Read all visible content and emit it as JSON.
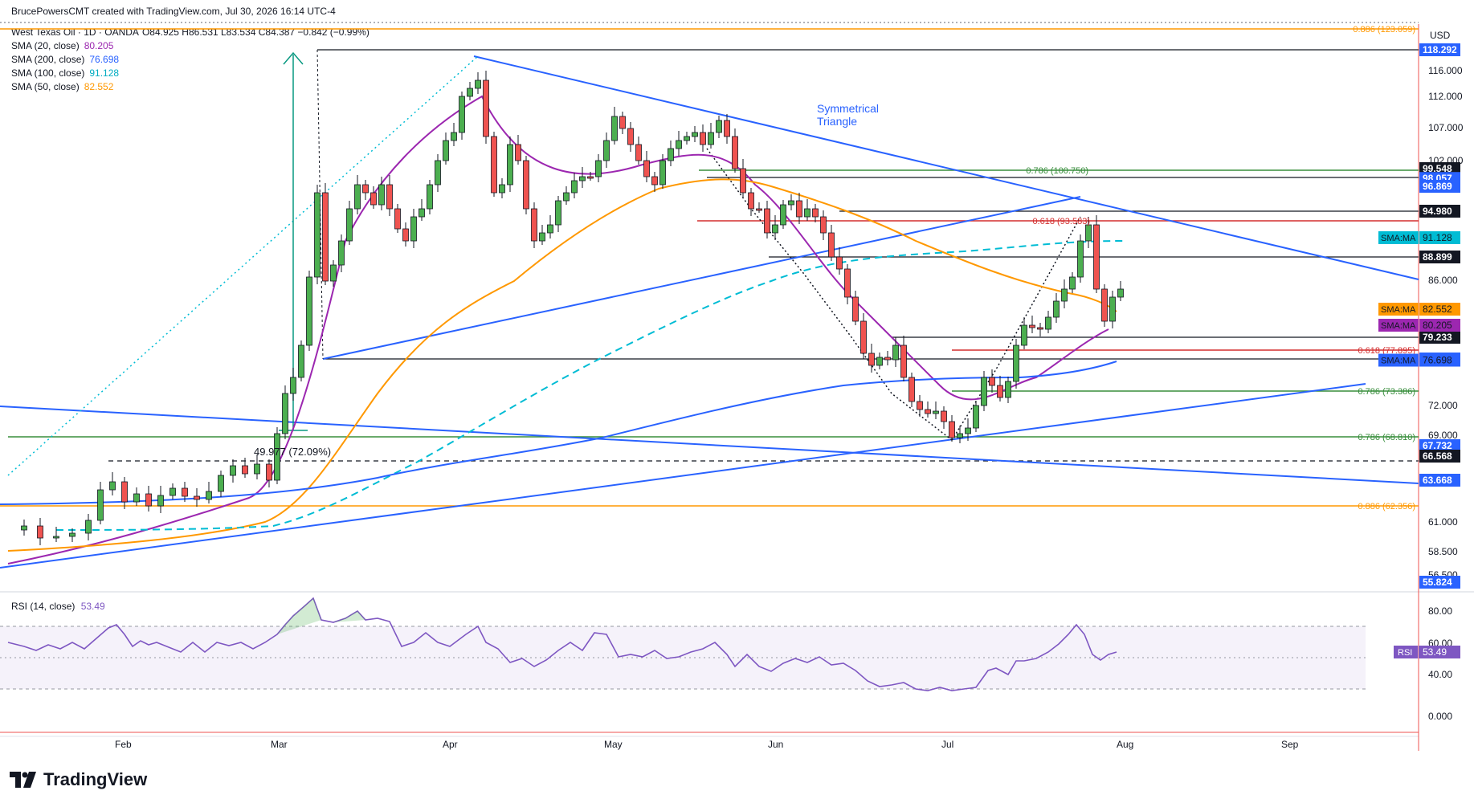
{
  "header": {
    "creator_line": "BrucePowersCMT created with TradingView.com, Jul 30, 2026 16:14 UTC-4"
  },
  "legend": {
    "symbol_line": "West Texas Oil · 1D · OANDA",
    "ohlc": "O84.925 H86.531 L83.534 C84.387 −0.842 (−0.99%)",
    "indicators": [
      {
        "label": "SMA (20, close)",
        "value": "80.205",
        "color": "#9c27b0"
      },
      {
        "label": "SMA (200, close)",
        "value": "76.698",
        "color": "#2962ff"
      },
      {
        "label": "SMA (100, close)",
        "value": "91.128",
        "color": "#00bcd4"
      },
      {
        "label": "SMA (50, close)",
        "value": "82.552",
        "color": "#ff9800"
      }
    ]
  },
  "currency": "USD",
  "brand": "TradingView",
  "chart_data": {
    "type": "candlestick",
    "symbol": "West Texas Oil",
    "interval": "1D",
    "price_axis_ticks": [
      "116.000",
      "112.000",
      "107.000",
      "102.000",
      "86.000",
      "72.000",
      "69.000",
      "61.000",
      "58.500",
      "56.500"
    ],
    "x_axis_ticks": [
      "Feb",
      "Mar",
      "Apr",
      "May",
      "Jun",
      "Jul",
      "Aug",
      "Sep"
    ],
    "price_labels": [
      {
        "text": "118.292",
        "value": 118.292,
        "bg": "#2962ff",
        "fg": "#ffffff"
      },
      {
        "text": "99.548",
        "value": 99.548,
        "bg": "#131722",
        "fg": "#ffffff"
      },
      {
        "text": "98.057",
        "value": 98.057,
        "bg": "#2962ff",
        "fg": "#ffffff"
      },
      {
        "text": "96.869",
        "value": 96.869,
        "bg": "#2962ff",
        "fg": "#ffffff"
      },
      {
        "text": "94.980",
        "value": 94.98,
        "bg": "#131722",
        "fg": "#ffffff"
      },
      {
        "text": "88.899",
        "value": 88.899,
        "bg": "#131722",
        "fg": "#ffffff"
      },
      {
        "text": "79.233",
        "value": 79.233,
        "bg": "#131722",
        "fg": "#ffffff"
      },
      {
        "text": "76.829",
        "value": 76.829,
        "bg": "#2962ff",
        "fg": "#ffffff"
      },
      {
        "text": "67.732",
        "value": 67.732,
        "bg": "#2962ff",
        "fg": "#ffffff"
      },
      {
        "text": "66.568",
        "value": 66.568,
        "bg": "#131722",
        "fg": "#ffffff"
      },
      {
        "text": "63.668",
        "value": 63.668,
        "bg": "#2962ff",
        "fg": "#ffffff"
      },
      {
        "text": "55.824",
        "value": 55.824,
        "bg": "#2962ff",
        "fg": "#ffffff"
      }
    ],
    "ma_tags": [
      {
        "name": "SMA:MA",
        "value": 91.128,
        "text": "91.128",
        "bg": "#00bcd4"
      },
      {
        "name": "SMA:MA",
        "value": 82.552,
        "text": "82.552",
        "bg": "#ff9800"
      },
      {
        "name": "SMA:MA",
        "value": 80.205,
        "text": "80.205",
        "bg": "#9c27b0"
      },
      {
        "name": "SMA:MA",
        "value": 76.698,
        "text": "76.698",
        "bg": "#2962ff"
      }
    ],
    "fib_levels": [
      {
        "text": "0.886 (123.059)",
        "value": 123.059,
        "color": "#ff9800"
      },
      {
        "text": "0.786 (100.750)",
        "value": 100.75,
        "color": "#388e3c"
      },
      {
        "text": "0.618 (93.583)",
        "value": 93.583,
        "color": "#d32f2f"
      },
      {
        "text": "0.618 (77.895)",
        "value": 77.895,
        "color": "#d32f2f"
      },
      {
        "text": "0.786 (73.386)",
        "value": 73.386,
        "color": "#388e3c"
      },
      {
        "text": "0.786 (68.810)",
        "value": 68.81,
        "color": "#388e3c"
      },
      {
        "text": "0.886 (62.356)",
        "value": 62.356,
        "color": "#ff9800"
      }
    ],
    "annotations": [
      {
        "text": "Symmetrical",
        "color": "#2962ff"
      },
      {
        "text": "Triangle",
        "color": "#2962ff"
      },
      {
        "text": "49.977 (72.09%)",
        "color": "#131722"
      }
    ],
    "rsi": {
      "label": "RSI (14, close)",
      "value": "53.49",
      "tag": "RSI",
      "ticks": [
        "80.00",
        "60.00",
        "40.00",
        "0.000"
      ],
      "bands": [
        70,
        30
      ],
      "mid": 50
    },
    "colors": {
      "up": "#4caf50",
      "down": "#ef5350",
      "sma20": "#9c27b0",
      "sma50": "#ff9800",
      "sma100": "#00bcd4",
      "sma200": "#2962ff",
      "trend": "#2962ff",
      "rsi": "#7e57c2"
    }
  }
}
